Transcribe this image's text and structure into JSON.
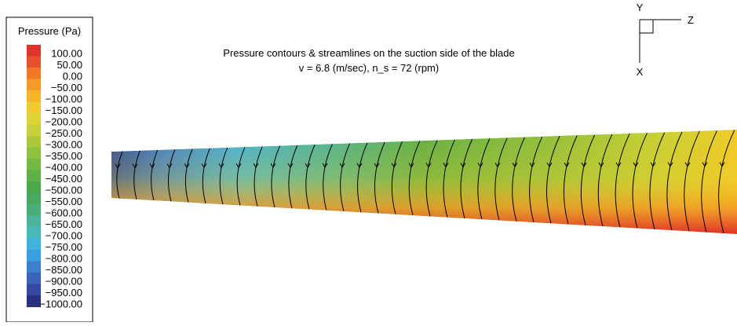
{
  "legend": {
    "title": "Pressure (Pa)",
    "levels": [
      {
        "label": "100.00",
        "color": "#e2302a"
      },
      {
        "label": "50.00",
        "color": "#eb4f2b"
      },
      {
        "label": "0.00",
        "color": "#f07828"
      },
      {
        "label": "−50.00",
        "color": "#f49a25"
      },
      {
        "label": "−100.00",
        "color": "#f6b623"
      },
      {
        "label": "−150.00",
        "color": "#f0cb29"
      },
      {
        "label": "−200.00",
        "color": "#e0d530"
      },
      {
        "label": "−250.00",
        "color": "#c8d234"
      },
      {
        "label": "−300.00",
        "color": "#abc93a"
      },
      {
        "label": "−350.00",
        "color": "#8fc13e"
      },
      {
        "label": "−400.00",
        "color": "#76b942"
      },
      {
        "label": "−450.00",
        "color": "#5fb146"
      },
      {
        "label": "−500.00",
        "color": "#4ba94b"
      },
      {
        "label": "−550.00",
        "color": "#49a961"
      },
      {
        "label": "−600.00",
        "color": "#4aae7b"
      },
      {
        "label": "−650.00",
        "color": "#4bb49a"
      },
      {
        "label": "−700.00",
        "color": "#48b8b8"
      },
      {
        "label": "−750.00",
        "color": "#40b4dc"
      },
      {
        "label": "−800.00",
        "color": "#3aa0e0"
      },
      {
        "label": "−850.00",
        "color": "#3a80cc"
      },
      {
        "label": "−900.00",
        "color": "#3a64b8"
      },
      {
        "label": "−950.00",
        "color": "#3448a0"
      },
      {
        "label": "−1000.00",
        "color": "#2a3080"
      }
    ]
  },
  "title": {
    "line1": "Pressure contours & streamlines on the suction side of the blade",
    "line2": "v = 6.8 (m/sec), n_s = 72 (rpm)"
  },
  "axes": {
    "y": "Y",
    "z": "Z",
    "x": "X"
  }
}
